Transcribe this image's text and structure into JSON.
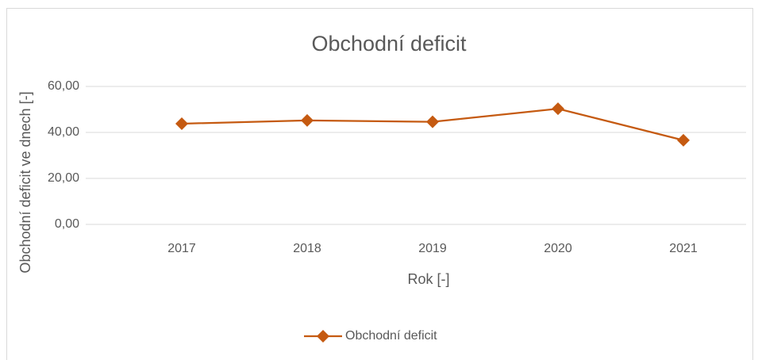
{
  "chart_data": {
    "type": "line",
    "title": "Obchodní deficit",
    "x_label": "Rok [-]",
    "y_label": "Obchodní deficit ve dnech [-]",
    "categories": [
      "2017",
      "2018",
      "2019",
      "2020",
      "2021"
    ],
    "series": [
      {
        "name": "Obchodní deficit",
        "color": "#c55a11",
        "values": [
          43.8,
          45.2,
          44.6,
          50.3,
          36.6
        ]
      }
    ],
    "ylim": [
      0,
      60
    ],
    "yticks": [
      {
        "value": 0,
        "label": "0,00"
      },
      {
        "value": 20,
        "label": "20,00"
      },
      {
        "value": 40,
        "label": "40,00"
      },
      {
        "value": 60,
        "label": "60,00"
      }
    ],
    "grid": true,
    "legend": "bottom"
  }
}
